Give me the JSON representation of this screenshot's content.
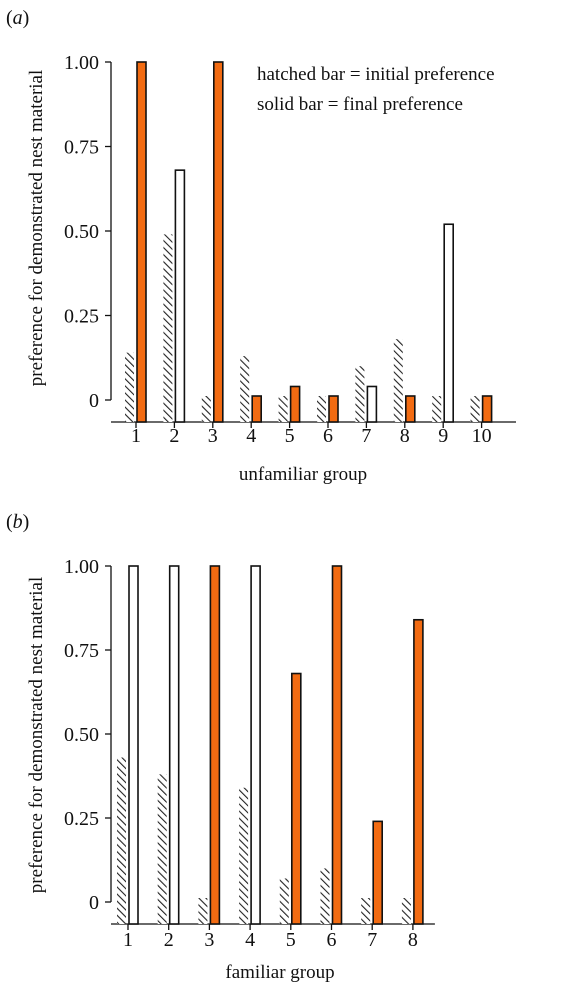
{
  "colors": {
    "final_bar_orange": "#f26b12",
    "bar_outline": "#111111",
    "open_bar_fill": "#ffffff",
    "hatch": "#222222"
  },
  "chart_data": [
    {
      "type": "bar",
      "panel_label": "(a)",
      "panel_letter": "a",
      "xlabel": "unfamiliar group",
      "ylabel": "preference for demonstrated nest material",
      "categories": [
        "1",
        "2",
        "3",
        "4",
        "5",
        "6",
        "7",
        "8",
        "9",
        "10"
      ],
      "ylim": [
        0,
        1.0
      ],
      "yticks": [
        "0",
        "0.25",
        "0.50",
        "0.75",
        "1.00"
      ],
      "ytick_values": [
        0,
        0.25,
        0.5,
        0.75,
        1.0
      ],
      "legend": [
        "hatched bar = initial preference",
        "solid bar = final preference"
      ],
      "legend_position": "top-right",
      "series": [
        {
          "name": "initial preference",
          "style": "hatched",
          "values": [
            0.14,
            0.49,
            0.01,
            0.13,
            0.0,
            0.0,
            0.1,
            0.18,
            0.0,
            0.0
          ]
        },
        {
          "name": "final preference",
          "style": "solid",
          "values": [
            1.0,
            0.68,
            1.0,
            0.0,
            0.04,
            0.0,
            0.04,
            0.0,
            0.52,
            0.0
          ],
          "filled": [
            true,
            false,
            true,
            true,
            true,
            true,
            false,
            true,
            false,
            true
          ]
        }
      ]
    },
    {
      "type": "bar",
      "panel_label": "(b)",
      "panel_letter": "b",
      "xlabel": "familiar group",
      "ylabel": "preference for demonstrated nest material",
      "categories": [
        "1",
        "2",
        "3",
        "4",
        "5",
        "6",
        "7",
        "8"
      ],
      "ylim": [
        0,
        1.0
      ],
      "yticks": [
        "0",
        "0.25",
        "0.50",
        "0.75",
        "1.00"
      ],
      "ytick_values": [
        0,
        0.25,
        0.5,
        0.75,
        1.0
      ],
      "series": [
        {
          "name": "initial preference",
          "style": "hatched",
          "values": [
            0.43,
            0.38,
            0.01,
            0.34,
            0.07,
            0.1,
            0.01,
            0.01
          ]
        },
        {
          "name": "final preference",
          "style": "solid",
          "values": [
            1.0,
            1.0,
            1.0,
            1.0,
            0.68,
            1.0,
            0.24,
            0.84
          ],
          "filled": [
            false,
            false,
            true,
            false,
            true,
            true,
            true,
            true
          ]
        }
      ]
    }
  ]
}
